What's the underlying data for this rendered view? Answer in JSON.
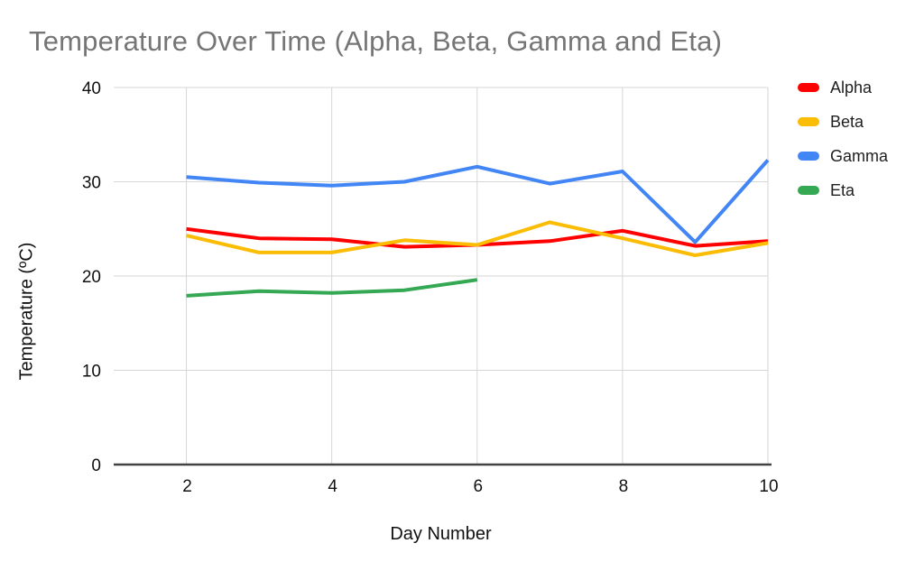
{
  "styles": {
    "title_color": "#757575",
    "grid_color": "#d6d6d6",
    "axis_color": "#424242",
    "tick_color": "#111111",
    "background": "#ffffff"
  },
  "chart_data": {
    "type": "line",
    "title": "Temperature Over Time (Alpha, Beta, Gamma and Eta)",
    "xlabel": "Day Number",
    "ylabel": "Temperature (ºC)",
    "x": [
      2,
      3,
      4,
      5,
      6,
      7,
      8,
      9,
      10
    ],
    "xlim": [
      1,
      10
    ],
    "ylim": [
      0,
      40
    ],
    "x_ticks": [
      2,
      4,
      6,
      8,
      10
    ],
    "y_ticks": [
      0,
      10,
      20,
      30,
      40
    ],
    "grid": true,
    "legend_position": "right",
    "series": [
      {
        "name": "Alpha",
        "color": "#FF0000",
        "values": [
          25.0,
          24.0,
          23.9,
          23.1,
          23.3,
          23.7,
          24.8,
          23.2,
          23.7
        ]
      },
      {
        "name": "Beta",
        "color": "#FBBC04",
        "values": [
          24.3,
          22.5,
          22.5,
          23.8,
          23.3,
          25.7,
          24.0,
          22.2,
          23.5
        ]
      },
      {
        "name": "Gamma",
        "color": "#4285F4",
        "values": [
          30.5,
          29.9,
          29.6,
          30.0,
          31.6,
          29.8,
          31.1,
          23.6,
          32.3
        ]
      },
      {
        "name": "Eta",
        "color": "#34A853",
        "values": [
          17.9,
          18.4,
          18.2,
          18.5,
          19.6,
          null,
          null,
          null,
          null
        ]
      }
    ]
  }
}
